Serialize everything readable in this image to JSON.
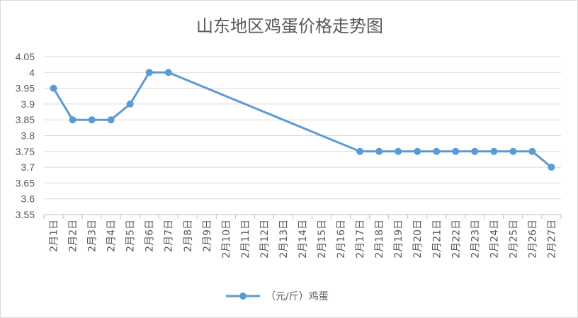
{
  "chart_data": {
    "type": "line",
    "title": "山东地区鸡蛋价格走势图",
    "xlabel": "",
    "ylabel": "",
    "categories": [
      "2月1日",
      "2月2日",
      "2月3日",
      "2月4日",
      "2月5日",
      "2月6日",
      "2月7日",
      "2月8日",
      "2月9日",
      "2月10日",
      "2月11日",
      "2月12日",
      "2月13日",
      "2月14日",
      "2月15日",
      "2月16日",
      "2月17日",
      "2月18日",
      "2月19日",
      "2月20日",
      "2月21日",
      "2月22日",
      "2月23日",
      "2月24日",
      "2月25日",
      "2月26日",
      "2月27日"
    ],
    "y_ticks": [
      "4.05",
      "4",
      "3.95",
      "3.9",
      "3.85",
      "3.8",
      "3.75",
      "3.7",
      "3.65",
      "3.6",
      "3.55"
    ],
    "ylim": [
      3.55,
      4.05
    ],
    "grid": true,
    "legend_position": "bottom",
    "series": [
      {
        "name": "（元/斤）鸡蛋",
        "color": "#5B9BD5",
        "values": [
          3.95,
          3.85,
          3.85,
          3.85,
          3.9,
          4.0,
          4.0,
          null,
          null,
          null,
          null,
          null,
          null,
          null,
          null,
          null,
          3.75,
          3.75,
          3.75,
          3.75,
          3.75,
          3.75,
          3.75,
          3.75,
          3.75,
          3.75,
          3.7
        ]
      }
    ]
  }
}
